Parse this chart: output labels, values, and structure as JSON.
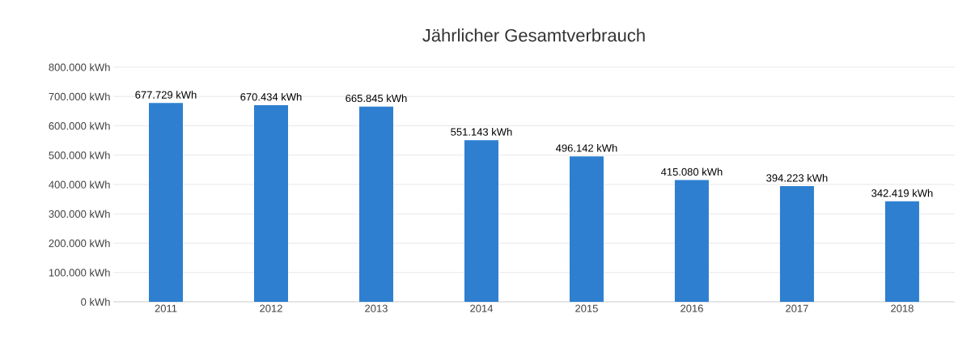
{
  "chart_data": {
    "type": "bar",
    "title": "Jährlicher Gesamtverbrauch",
    "categories": [
      "2011",
      "2012",
      "2013",
      "2014",
      "2015",
      "2016",
      "2017",
      "2018"
    ],
    "values": [
      677729,
      670434,
      665845,
      551143,
      496142,
      415080,
      394223,
      342419
    ],
    "value_labels": [
      "677.729 kWh",
      "670.434 kWh",
      "665.845 kWh",
      "551.143 kWh",
      "496.142 kWh",
      "415.080 kWh",
      "394.223 kWh",
      "342.419 kWh"
    ],
    "color": "#2e7fd0",
    "ylim": [
      0,
      800000
    ],
    "yticks": [
      {
        "value": 0,
        "label": "0 kWh"
      },
      {
        "value": 100000,
        "label": "100.000 kWh"
      },
      {
        "value": 200000,
        "label": "200.000 kWh"
      },
      {
        "value": 300000,
        "label": "300.000 kWh"
      },
      {
        "value": 400000,
        "label": "400.000 kWh"
      },
      {
        "value": 500000,
        "label": "500.000 kWh"
      },
      {
        "value": 600000,
        "label": "600.000 kWh"
      },
      {
        "value": 700000,
        "label": "700.000 kWh"
      },
      {
        "value": 800000,
        "label": "800.000 kWh"
      }
    ],
    "grid": "y"
  }
}
